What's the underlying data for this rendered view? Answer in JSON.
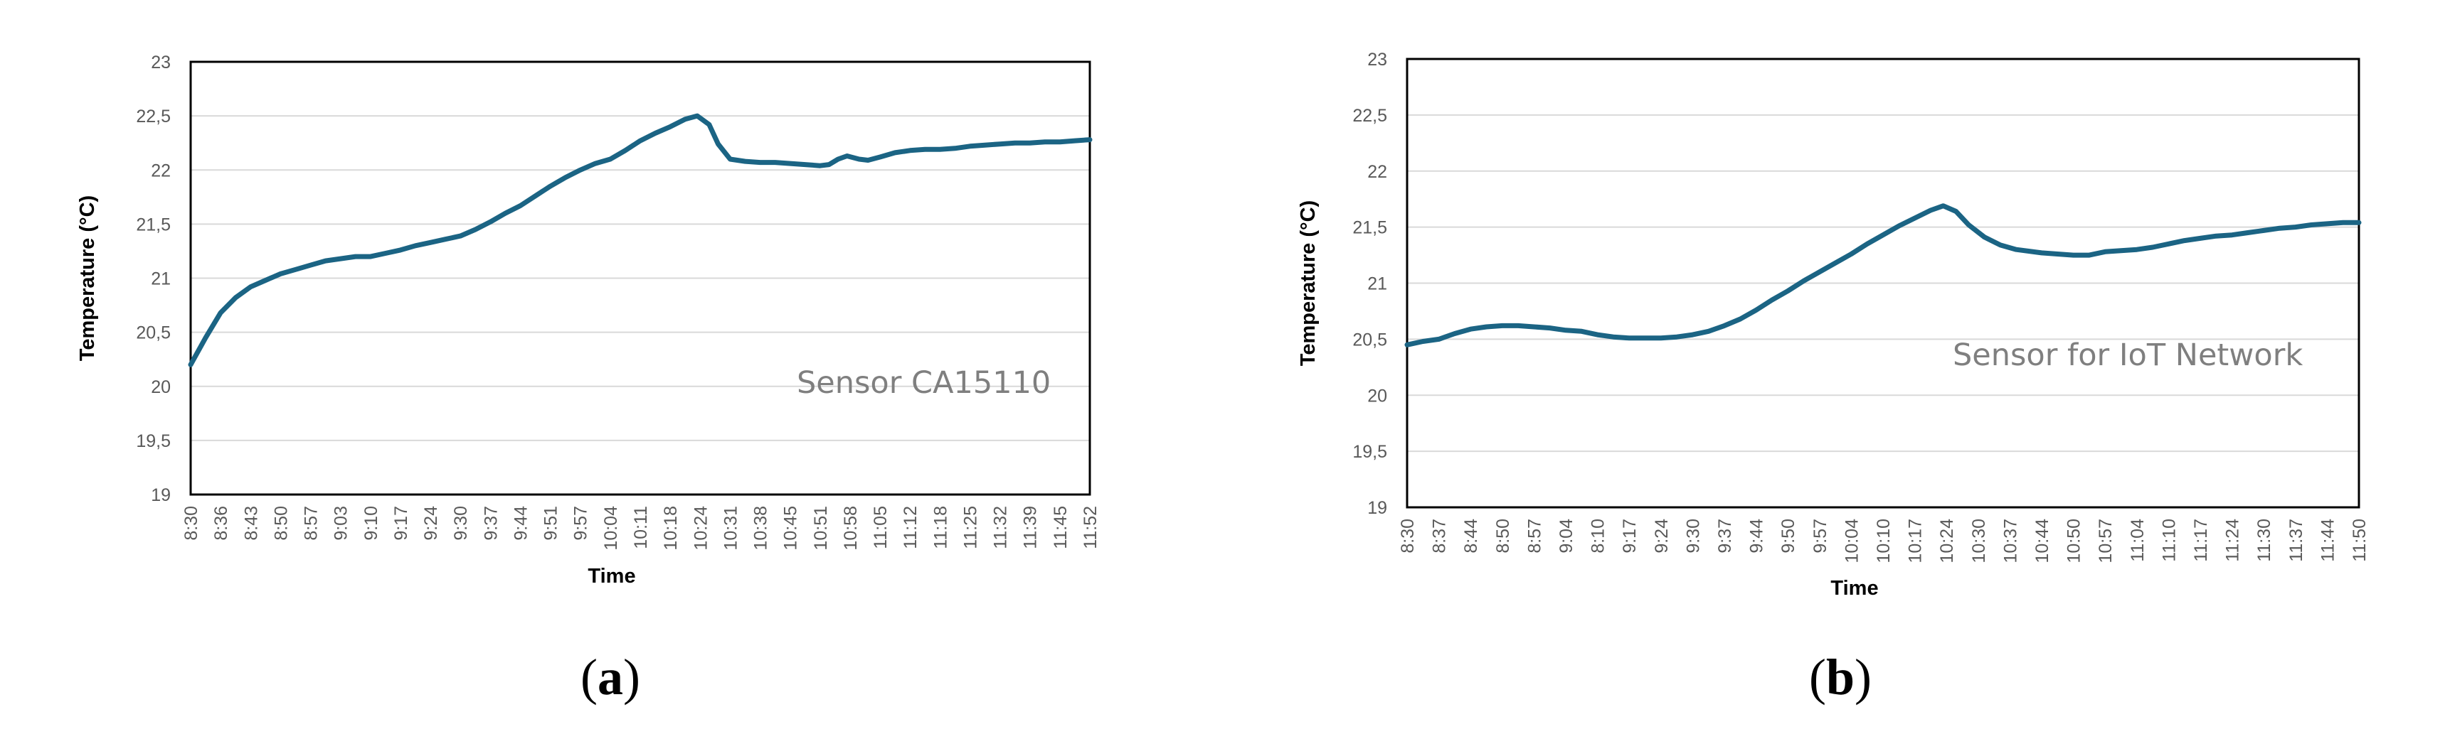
{
  "colors": {
    "line": "#1b6484",
    "grid": "#d9d9d9",
    "frame": "#000000",
    "tick_text": "#595959",
    "annotation": "#7f7f7f"
  },
  "chart_data": [
    {
      "type": "line",
      "caption_letter": "a",
      "xlabel": "Time",
      "ylabel": "Temperature (°C)",
      "annotation": "Sensor CA15110",
      "ylim": [
        19,
        23
      ],
      "y_ticks": [
        "19",
        "19,5",
        "20",
        "20,5",
        "21",
        "21,5",
        "22",
        "22,5",
        "23"
      ],
      "x_ticks": [
        "8:30",
        "8:36",
        "8:43",
        "8:50",
        "8:57",
        "9:03",
        "9:10",
        "9:17",
        "9:24",
        "9:30",
        "9:37",
        "9:44",
        "9:51",
        "9:57",
        "10:04",
        "10:11",
        "10:18",
        "10:24",
        "10:31",
        "10:38",
        "10:45",
        "10:51",
        "10:58",
        "11:05",
        "11:12",
        "11:18",
        "11:25",
        "11:32",
        "11:39",
        "11:45",
        "11:52"
      ],
      "grid": "horizontal",
      "series": [
        {
          "values": [
            [
              0,
              20.2
            ],
            [
              0.5,
              20.45
            ],
            [
              1,
              20.68
            ],
            [
              1.5,
              20.82
            ],
            [
              2,
              20.92
            ],
            [
              2.5,
              20.98
            ],
            [
              3,
              21.04
            ],
            [
              3.5,
              21.08
            ],
            [
              4,
              21.12
            ],
            [
              4.5,
              21.16
            ],
            [
              5,
              21.18
            ],
            [
              5.5,
              21.2
            ],
            [
              6,
              21.2
            ],
            [
              6.5,
              21.23
            ],
            [
              7,
              21.26
            ],
            [
              7.5,
              21.3
            ],
            [
              8,
              21.33
            ],
            [
              8.5,
              21.36
            ],
            [
              9,
              21.39
            ],
            [
              9.5,
              21.45
            ],
            [
              10,
              21.52
            ],
            [
              10.5,
              21.6
            ],
            [
              11,
              21.67
            ],
            [
              11.5,
              21.76
            ],
            [
              12,
              21.85
            ],
            [
              12.5,
              21.93
            ],
            [
              13,
              22.0
            ],
            [
              13.5,
              22.06
            ],
            [
              14,
              22.1
            ],
            [
              14.5,
              22.18
            ],
            [
              15,
              22.27
            ],
            [
              15.5,
              22.34
            ],
            [
              16,
              22.4
            ],
            [
              16.5,
              22.47
            ],
            [
              16.9,
              22.5
            ],
            [
              17.3,
              22.42
            ],
            [
              17.6,
              22.24
            ],
            [
              18,
              22.1
            ],
            [
              18.5,
              22.08
            ],
            [
              19,
              22.07
            ],
            [
              19.5,
              22.07
            ],
            [
              20,
              22.06
            ],
            [
              20.5,
              22.05
            ],
            [
              21,
              22.04
            ],
            [
              21.3,
              22.05
            ],
            [
              21.6,
              22.1
            ],
            [
              21.9,
              22.13
            ],
            [
              22.3,
              22.1
            ],
            [
              22.6,
              22.09
            ],
            [
              23,
              22.12
            ],
            [
              23.5,
              22.16
            ],
            [
              24,
              22.18
            ],
            [
              24.5,
              22.19
            ],
            [
              25,
              22.19
            ],
            [
              25.5,
              22.2
            ],
            [
              26,
              22.22
            ],
            [
              26.5,
              22.23
            ],
            [
              27,
              22.24
            ],
            [
              27.5,
              22.25
            ],
            [
              28,
              22.25
            ],
            [
              28.5,
              22.26
            ],
            [
              29,
              22.26
            ],
            [
              29.5,
              22.27
            ],
            [
              30,
              22.28
            ]
          ]
        }
      ]
    },
    {
      "type": "line",
      "caption_letter": "b",
      "xlabel": "Time",
      "ylabel": "Temperature (°C)",
      "annotation": "Sensor for IoT Network",
      "ylim": [
        19,
        23
      ],
      "y_ticks": [
        "19",
        "19,5",
        "20",
        "20,5",
        "21",
        "21,5",
        "22",
        "22,5",
        "23"
      ],
      "x_ticks": [
        "8:30",
        "8:37",
        "8:44",
        "8:50",
        "8:57",
        "9:04",
        "8:10",
        "9:17",
        "9:24",
        "9:30",
        "9:37",
        "9:44",
        "9:50",
        "9:57",
        "10:04",
        "10:10",
        "10:17",
        "10:24",
        "10:30",
        "10:37",
        "10:44",
        "10:50",
        "10:57",
        "11:04",
        "11:10",
        "11:17",
        "11:24",
        "11:30",
        "11:37",
        "11:44",
        "11:50"
      ],
      "grid": "horizontal",
      "series": [
        {
          "values": [
            [
              0,
              20.45
            ],
            [
              0.5,
              20.48
            ],
            [
              1,
              20.5
            ],
            [
              1.5,
              20.55
            ],
            [
              2,
              20.59
            ],
            [
              2.5,
              20.61
            ],
            [
              3,
              20.62
            ],
            [
              3.5,
              20.62
            ],
            [
              4,
              20.61
            ],
            [
              4.5,
              20.6
            ],
            [
              5,
              20.58
            ],
            [
              5.5,
              20.57
            ],
            [
              6,
              20.54
            ],
            [
              6.5,
              20.52
            ],
            [
              7,
              20.51
            ],
            [
              7.5,
              20.51
            ],
            [
              8,
              20.51
            ],
            [
              8.5,
              20.52
            ],
            [
              9,
              20.54
            ],
            [
              9.5,
              20.57
            ],
            [
              10,
              20.62
            ],
            [
              10.5,
              20.68
            ],
            [
              11,
              20.76
            ],
            [
              11.5,
              20.85
            ],
            [
              12,
              20.93
            ],
            [
              12.5,
              21.02
            ],
            [
              13,
              21.1
            ],
            [
              13.5,
              21.18
            ],
            [
              14,
              21.26
            ],
            [
              14.5,
              21.35
            ],
            [
              15,
              21.43
            ],
            [
              15.5,
              21.51
            ],
            [
              16,
              21.58
            ],
            [
              16.5,
              21.65
            ],
            [
              16.9,
              21.69
            ],
            [
              17.3,
              21.64
            ],
            [
              17.7,
              21.52
            ],
            [
              18.2,
              21.41
            ],
            [
              18.7,
              21.34
            ],
            [
              19.2,
              21.3
            ],
            [
              20,
              21.27
            ],
            [
              20.5,
              21.26
            ],
            [
              21,
              21.25
            ],
            [
              21.5,
              21.25
            ],
            [
              22,
              21.28
            ],
            [
              22.5,
              21.29
            ],
            [
              23,
              21.3
            ],
            [
              23.5,
              21.32
            ],
            [
              24,
              21.35
            ],
            [
              24.5,
              21.38
            ],
            [
              25,
              21.4
            ],
            [
              25.5,
              21.42
            ],
            [
              26,
              21.43
            ],
            [
              26.5,
              21.45
            ],
            [
              27,
              21.47
            ],
            [
              27.5,
              21.49
            ],
            [
              28,
              21.5
            ],
            [
              28.5,
              21.52
            ],
            [
              29,
              21.53
            ],
            [
              29.5,
              21.54
            ],
            [
              30,
              21.54
            ]
          ]
        }
      ]
    }
  ]
}
